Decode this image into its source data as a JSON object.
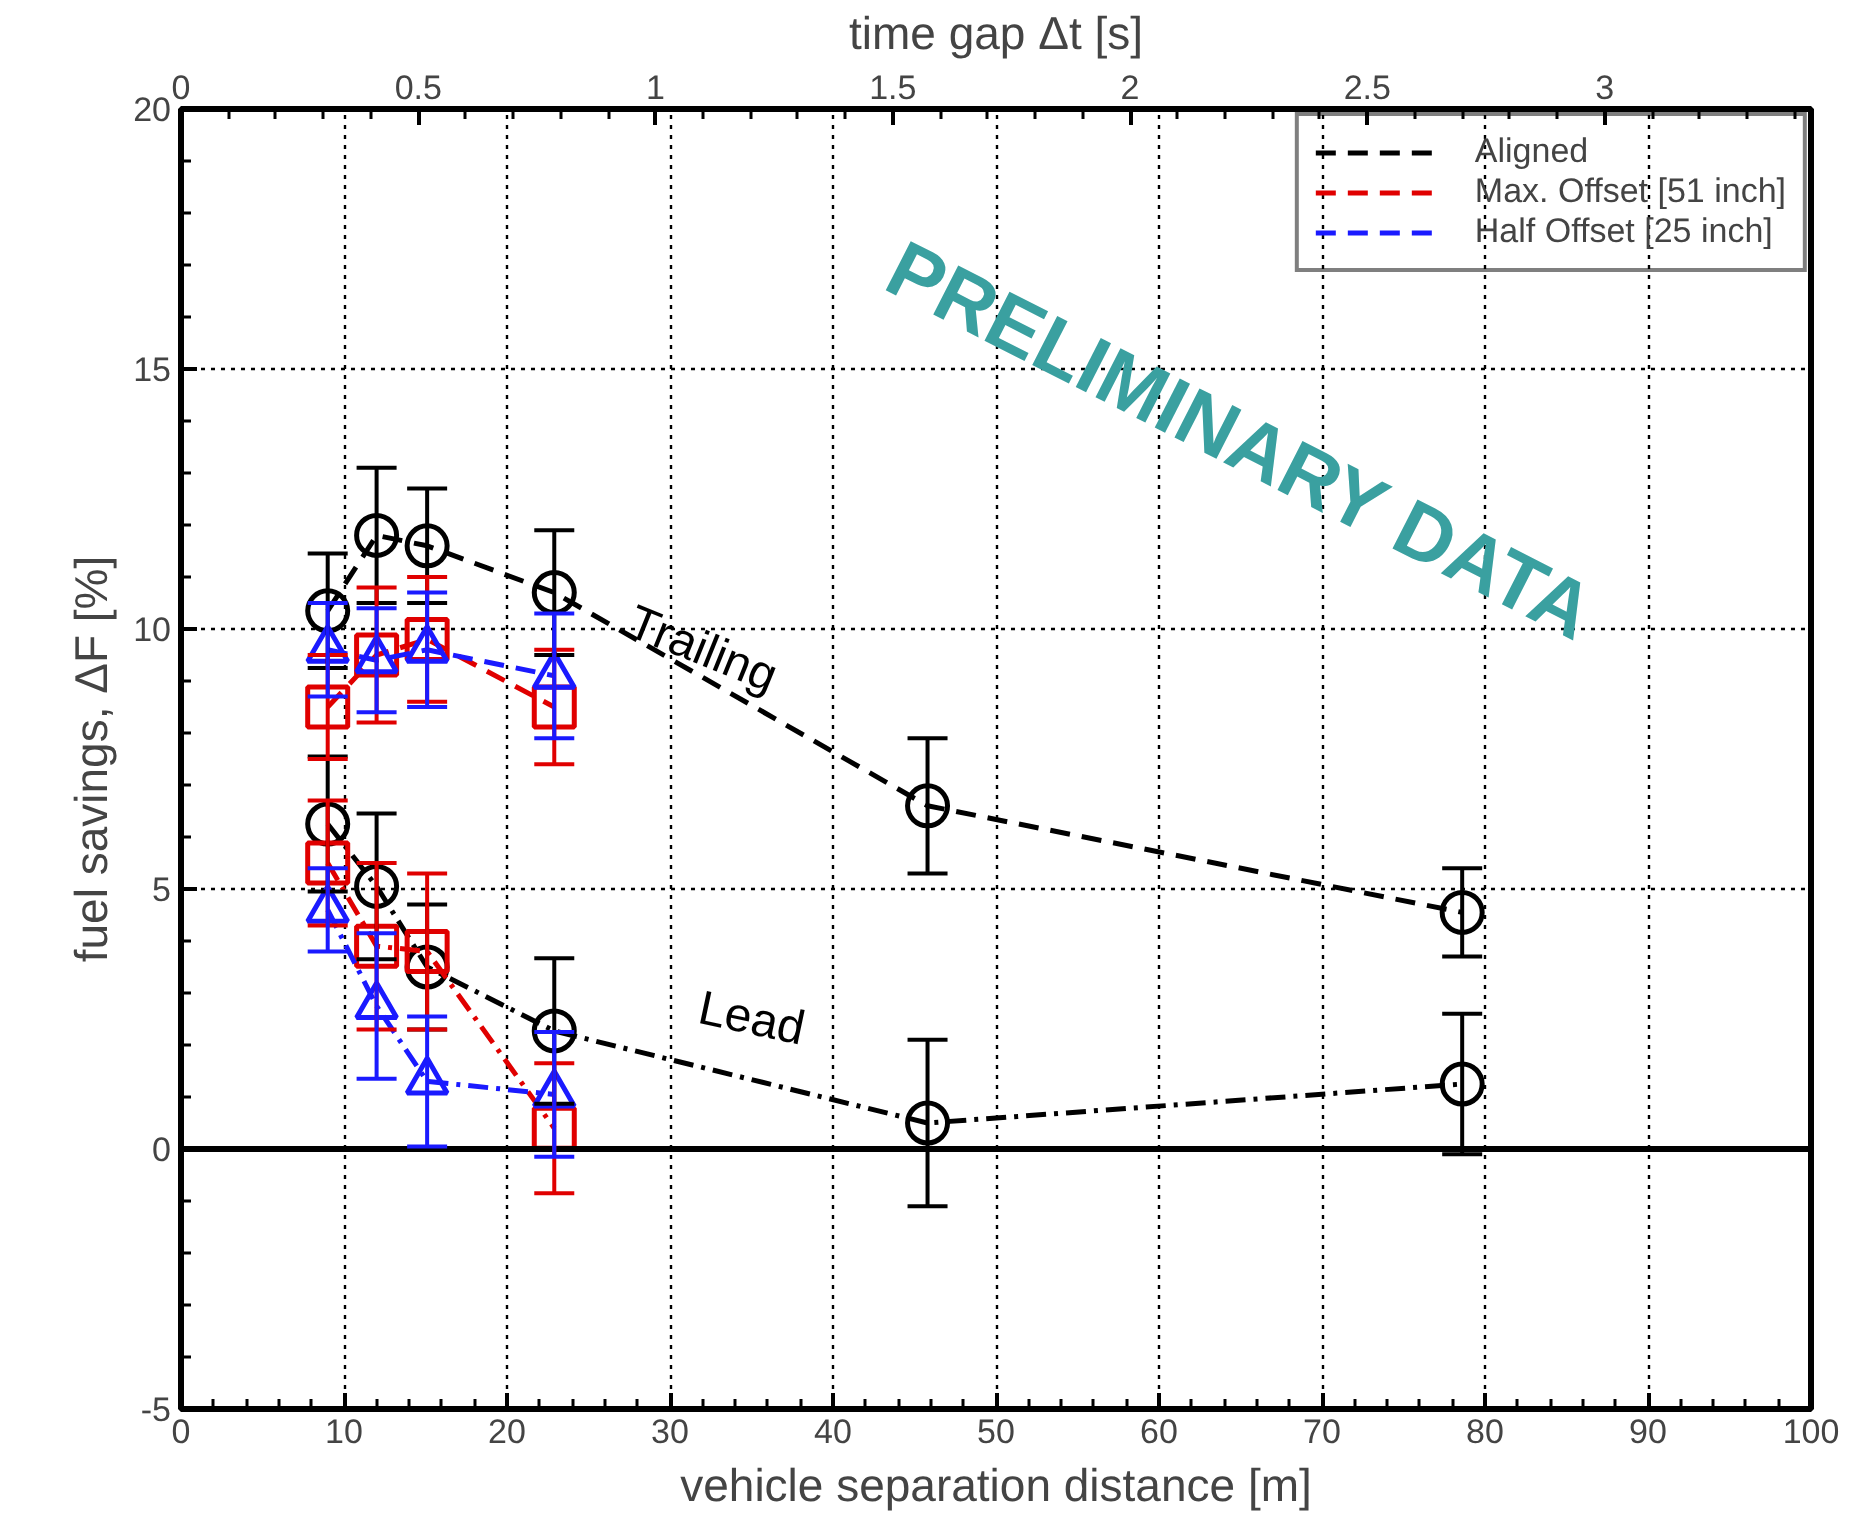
{
  "chart_data": {
    "type": "line",
    "xlabel": "vehicle separation distance [m]",
    "ylabel": "fuel savings, ΔF [%]",
    "x2label": "time gap Δt [s]",
    "xlim": [
      0,
      100
    ],
    "xticks": [
      0,
      10,
      20,
      30,
      40,
      50,
      60,
      70,
      80,
      90,
      100
    ],
    "ylim": [
      -5,
      20
    ],
    "yticks": [
      -5,
      0,
      5,
      10,
      15,
      20
    ],
    "x2lim": [
      0,
      3.435
    ],
    "x2ticks": [
      0,
      0.5,
      1,
      1.5,
      2,
      2.5,
      3
    ],
    "grid": true,
    "legend": "top right",
    "ref_lines": [
      {
        "axis": "y",
        "value": 0,
        "color": "#000000",
        "line_style": "solid"
      }
    ],
    "annotations": [
      "Trailing",
      "Lead",
      "PRELIMINARY DATA"
    ],
    "series": [
      {
        "name": "Aligned",
        "color": "#000000",
        "marker": "circle",
        "line_style": "dashed",
        "x": [
          9.0,
          12.0,
          15.1,
          22.9,
          45.8,
          78.6
        ],
        "values": [
          10.35,
          11.8,
          11.6,
          10.7,
          6.6,
          4.55
        ],
        "errors": [
          1.1,
          1.3,
          1.1,
          1.2,
          1.3,
          0.85
        ]
      },
      {
        "color": "#000000",
        "marker": "circle",
        "line_style": "dashdot",
        "x": [
          9.0,
          12.0,
          15.1,
          22.9,
          45.8,
          78.6
        ],
        "values": [
          6.25,
          5.05,
          3.5,
          2.27,
          0.5,
          1.25
        ],
        "errors": [
          1.3,
          1.4,
          1.2,
          1.4,
          1.6,
          1.35
        ]
      },
      {
        "name": "Max. Offset [51 inch]",
        "color": "#e00000",
        "marker": "square",
        "line_style": "dashed",
        "x": [
          9.0,
          12.0,
          15.1,
          22.9
        ],
        "values": [
          8.5,
          9.5,
          9.8,
          8.5
        ],
        "errors": [
          1.0,
          1.3,
          1.2,
          1.1
        ]
      },
      {
        "color": "#e00000",
        "marker": "square",
        "line_style": "dashdot",
        "x": [
          9.0,
          12.0,
          15.1,
          22.9
        ],
        "values": [
          5.5,
          3.9,
          3.8,
          0.4
        ],
        "errors": [
          1.2,
          1.6,
          1.5,
          1.25
        ]
      },
      {
        "name": "Half Offset [25 inch]",
        "color": "#1a1aff",
        "marker": "triangle",
        "line_style": "dashed",
        "x": [
          9.0,
          12.0,
          15.1,
          22.9
        ],
        "values": [
          9.6,
          9.4,
          9.6,
          9.1
        ],
        "errors": [
          0.9,
          1.0,
          1.1,
          1.2
        ]
      },
      {
        "color": "#1a1aff",
        "marker": "triangle",
        "line_style": "dashdot",
        "x": [
          9.0,
          12.0,
          15.1,
          22.9
        ],
        "values": [
          4.6,
          2.75,
          1.3,
          1.05
        ],
        "errors": [
          0.8,
          1.4,
          1.25,
          1.2
        ]
      }
    ]
  }
}
